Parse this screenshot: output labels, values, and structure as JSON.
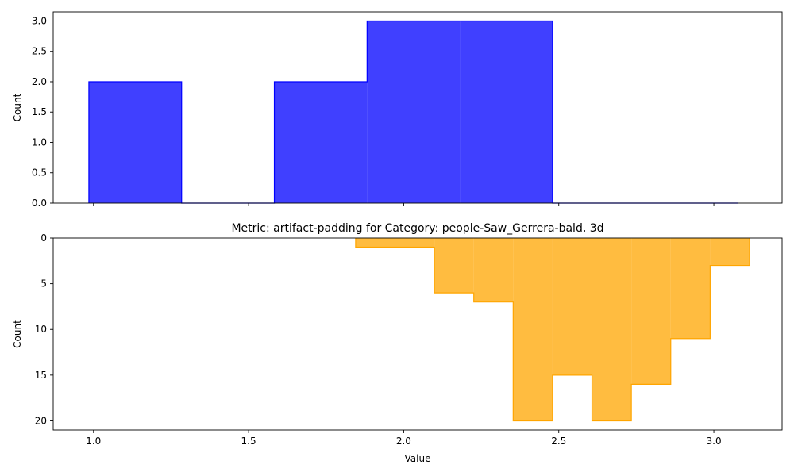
{
  "chart_data": [
    {
      "type": "histogram",
      "title": "",
      "xlabel": "",
      "ylabel": "Count",
      "color": "#0000ff",
      "fill_alpha": 0.75,
      "xlim": [
        0.87,
        3.22
      ],
      "ylim": [
        0,
        3.15
      ],
      "x_ticks": [
        1.0,
        1.5,
        2.0,
        2.5,
        3.0
      ],
      "x_tick_labels_visible": false,
      "y_ticks": [
        0.0,
        0.5,
        1.0,
        1.5,
        2.0,
        2.5,
        3.0
      ],
      "y_tick_labels": [
        "0.0",
        "0.5",
        "1.0",
        "1.5",
        "2.0",
        "2.5",
        "3.0"
      ],
      "y_inverted": false,
      "bin_edges": [
        0.985,
        1.284,
        1.583,
        1.882,
        2.181,
        2.48,
        2.779,
        3.078
      ],
      "counts": [
        2,
        0,
        2,
        3,
        3,
        0,
        0
      ]
    },
    {
      "type": "histogram",
      "title": "Metric: artifact-padding for Category: people-Saw_Gerrera-bald, 3d",
      "xlabel": "Value",
      "ylabel": "Count",
      "color": "#ffa500",
      "fill_alpha": 0.75,
      "xlim": [
        0.87,
        3.22
      ],
      "ylim": [
        0,
        21.0
      ],
      "x_ticks": [
        1.0,
        1.5,
        2.0,
        2.5,
        3.0
      ],
      "x_tick_labels": [
        "1.0",
        "1.5",
        "2.0",
        "2.5",
        "3.0"
      ],
      "x_tick_labels_visible": true,
      "y_ticks": [
        0,
        5,
        10,
        15,
        20
      ],
      "y_tick_labels": [
        "0",
        "5",
        "10",
        "15",
        "20"
      ],
      "y_inverted": true,
      "bin_edges": [
        1.845,
        1.972,
        2.099,
        2.226,
        2.353,
        2.48,
        2.607,
        2.734,
        2.861,
        2.988,
        3.115
      ],
      "counts": [
        1,
        1,
        6,
        7,
        20,
        15,
        20,
        16,
        11,
        3
      ]
    }
  ]
}
